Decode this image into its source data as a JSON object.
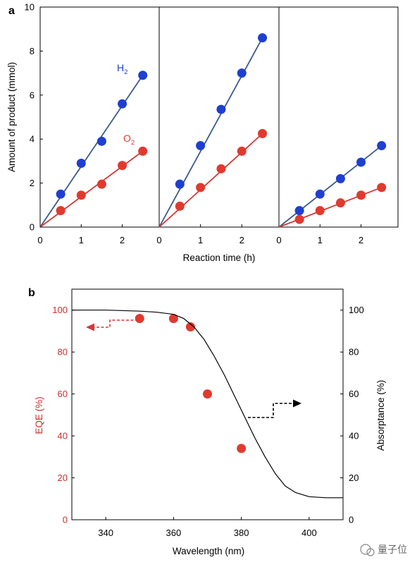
{
  "panel_a": {
    "label": "a",
    "ylabel": "Amount of product (mmol)",
    "xlabel": "Reaction time (h)",
    "h2_label": "H",
    "h2_sub": "2",
    "o2_label": "O",
    "o2_sub": "2"
  },
  "panel_b": {
    "label": "b",
    "ylabel_left": "EQE (%)",
    "ylabel_right": "Absorptance (%)",
    "xlabel": "Wavelength (nm)"
  },
  "watermark": "量子位",
  "colors": {
    "h2_points": "#1f3fd1",
    "o2_points": "#e03a2f",
    "h2_line": "#3a5a8a",
    "o2_line": "#d23a35",
    "eqe_axis": "#c8302a"
  },
  "chart_data": [
    {
      "type": "scatter",
      "subplots": [
        {
          "x_ticks": [
            "0",
            "1",
            "2"
          ],
          "series": [
            {
              "name": "H2",
              "x": [
                0.5,
                1.0,
                1.5,
                2.0,
                2.5
              ],
              "y": [
                1.5,
                2.9,
                3.9,
                5.6,
                6.9
              ],
              "fit": [
                [
                  0,
                  0
                ],
                [
                  2.5,
                  6.9
                ]
              ]
            },
            {
              "name": "O2",
              "x": [
                0.5,
                1.0,
                1.5,
                2.0,
                2.5
              ],
              "y": [
                0.75,
                1.45,
                1.95,
                2.8,
                3.45
              ],
              "fit": [
                [
                  0,
                  0
                ],
                [
                  2.5,
                  3.45
                ]
              ]
            }
          ]
        },
        {
          "x_ticks": [
            "0",
            "1",
            "2"
          ],
          "series": [
            {
              "name": "H2",
              "x": [
                0.5,
                1.0,
                1.5,
                2.0,
                2.5
              ],
              "y": [
                1.95,
                3.7,
                5.35,
                7.0,
                8.6
              ],
              "fit": [
                [
                  0,
                  0
                ],
                [
                  2.5,
                  8.6
                ]
              ]
            },
            {
              "name": "O2",
              "x": [
                0.5,
                1.0,
                1.5,
                2.0,
                2.5
              ],
              "y": [
                0.95,
                1.8,
                2.65,
                3.45,
                4.25
              ],
              "fit": [
                [
                  0,
                  0
                ],
                [
                  2.5,
                  4.25
                ]
              ]
            }
          ]
        },
        {
          "x_ticks": [
            "0",
            "1",
            "2"
          ],
          "series": [
            {
              "name": "H2",
              "x": [
                0.5,
                1.0,
                1.5,
                2.0,
                2.5
              ],
              "y": [
                0.75,
                1.5,
                2.2,
                2.95,
                3.7
              ],
              "fit": [
                [
                  0,
                  0
                ],
                [
                  2.5,
                  3.7
                ]
              ]
            },
            {
              "name": "O2",
              "x": [
                0.5,
                1.0,
                1.5,
                2.0,
                2.5
              ],
              "y": [
                0.35,
                0.75,
                1.1,
                1.45,
                1.8
              ],
              "fit": [
                [
                  0,
                  0
                ],
                [
                  2.5,
                  1.8
                ]
              ]
            }
          ]
        }
      ],
      "xlim": [
        0,
        2.9
      ],
      "ylim": [
        0,
        10
      ],
      "y_ticks": [
        "0",
        "2",
        "4",
        "6",
        "8",
        "10"
      ],
      "y_tick_values": [
        0,
        2,
        4,
        6,
        8,
        10
      ],
      "x_tick_values": [
        0,
        1,
        2
      ]
    },
    {
      "type": "scatter",
      "xlim": [
        330,
        410
      ],
      "ylim": [
        0,
        110
      ],
      "x_ticks": [
        "340",
        "360",
        "380",
        "400"
      ],
      "x_tick_values": [
        340,
        360,
        380,
        400
      ],
      "y_ticks_left": [
        "0",
        "20",
        "40",
        "60",
        "80",
        "100"
      ],
      "y_ticks_right": [
        "0",
        "20",
        "40",
        "60",
        "80",
        "100"
      ],
      "y_tick_values": [
        0,
        20,
        40,
        60,
        80,
        100
      ],
      "series": [
        {
          "name": "EQE",
          "x": [
            350,
            360,
            365,
            370,
            380
          ],
          "y": [
            96,
            96,
            92,
            60,
            34
          ]
        },
        {
          "name": "Absorptance",
          "style": "line",
          "x": [
            330,
            340,
            350,
            355,
            360,
            363,
            366,
            369,
            372,
            375,
            378,
            381,
            384,
            387,
            390,
            393,
            396,
            400,
            405,
            410
          ],
          "y": [
            100,
            100,
            99.5,
            99,
            98,
            96,
            92,
            86,
            78,
            69,
            59,
            49,
            39,
            30,
            22,
            16,
            13,
            11,
            10.5,
            10.5
          ]
        }
      ]
    }
  ]
}
